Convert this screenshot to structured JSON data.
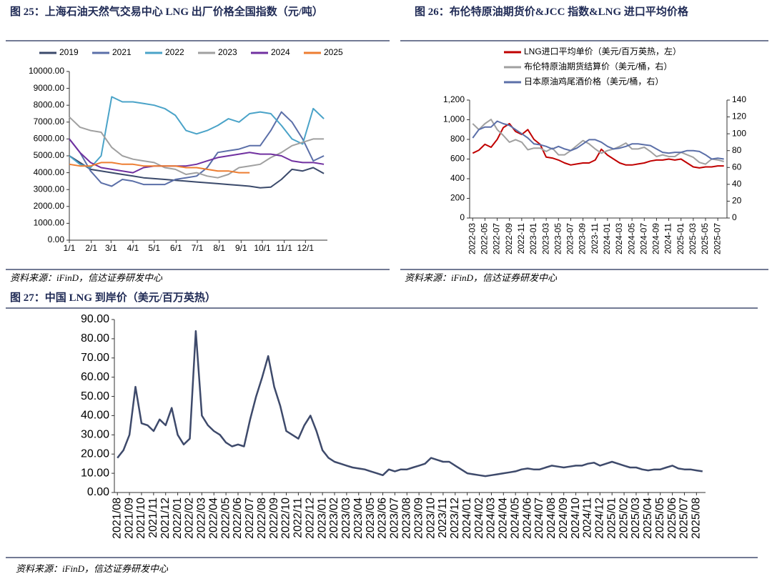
{
  "chart_data": [
    {
      "type": "line",
      "title": "图 25：上海石油天然气交易中心 LNG 出厂价格全国指数（元/吨）",
      "source": "资料来源：iFinD，信达证券研发中心",
      "x": [
        1,
        16,
        31,
        46,
        61,
        76,
        91,
        106,
        121,
        136,
        151,
        166,
        181,
        196,
        211,
        226,
        241,
        256,
        271,
        286,
        301,
        316,
        331,
        346,
        361
      ],
      "xlim": [
        1,
        366
      ],
      "xticks": [
        {
          "value": 1,
          "label": "1/1"
        },
        {
          "value": 32,
          "label": "2/1"
        },
        {
          "value": 60,
          "label": "3/1"
        },
        {
          "value": 91,
          "label": "4/1"
        },
        {
          "value": 121,
          "label": "5/1"
        },
        {
          "value": 152,
          "label": "6/1"
        },
        {
          "value": 182,
          "label": "7/1"
        },
        {
          "value": 213,
          "label": "8/1"
        },
        {
          "value": 244,
          "label": "9/1"
        },
        {
          "value": 274,
          "label": "10/1"
        },
        {
          "value": 305,
          "label": "11/1"
        },
        {
          "value": 335,
          "label": "12/1"
        }
      ],
      "ylim": [
        0,
        10000
      ],
      "yticks": [
        {
          "value": 0,
          "label": "0.00"
        },
        {
          "value": 1000,
          "label": "1000.00"
        },
        {
          "value": 2000,
          "label": "2000.00"
        },
        {
          "value": 3000,
          "label": "3000.00"
        },
        {
          "value": 4000,
          "label": "4000.00"
        },
        {
          "value": 5000,
          "label": "5000.00"
        },
        {
          "value": 6000,
          "label": "6000.00"
        },
        {
          "value": 7000,
          "label": "7000.00"
        },
        {
          "value": 8000,
          "label": "8000.00"
        },
        {
          "value": 9000,
          "label": "9000.00"
        },
        {
          "value": 10000,
          "label": "10000.00"
        }
      ],
      "legend": "top",
      "series": [
        {
          "name": "2019",
          "color": "#3b4a6b",
          "values": [
            5000,
            4600,
            4200,
            4100,
            4000,
            3900,
            3800,
            3700,
            3650,
            3600,
            3550,
            3500,
            3450,
            3400,
            3350,
            3300,
            3250,
            3200,
            3100,
            3150,
            3600,
            4200,
            4100,
            4300,
            3950
          ]
        },
        {
          "name": "2021",
          "color": "#5b6fa8",
          "values": [
            6000,
            5200,
            4100,
            3400,
            3200,
            3600,
            3500,
            3300,
            3300,
            3300,
            3600,
            3700,
            3800,
            4300,
            5200,
            5300,
            5400,
            5600,
            5600,
            6500,
            7600,
            7000,
            6000,
            4700,
            5000
          ]
        },
        {
          "name": "2022",
          "color": "#4aa3c8",
          "values": [
            5000,
            4500,
            4300,
            5000,
            8500,
            8200,
            8200,
            8100,
            8000,
            7800,
            7400,
            6500,
            6300,
            6500,
            6800,
            7200,
            7000,
            7500,
            7600,
            7500,
            6800,
            6000,
            5700,
            7800,
            7200
          ]
        },
        {
          "name": "2023",
          "color": "#a0a0a0",
          "values": [
            7300,
            6700,
            6500,
            6400,
            5500,
            5000,
            4800,
            4700,
            4600,
            4300,
            4200,
            3900,
            4000,
            3800,
            3700,
            3900,
            4300,
            4400,
            4500,
            4900,
            5200,
            5600,
            5800,
            6000,
            6000
          ]
        },
        {
          "name": "2024",
          "color": "#7030a0",
          "values": [
            6000,
            5200,
            4600,
            4300,
            4200,
            4100,
            4000,
            4300,
            4400,
            4400,
            4400,
            4400,
            4500,
            4700,
            4900,
            5000,
            5100,
            5200,
            5100,
            5100,
            5000,
            4700,
            4600,
            4600,
            4500
          ]
        },
        {
          "name": "2025",
          "color": "#ed7d31",
          "values": [
            4500,
            4400,
            4400,
            4600,
            4600,
            4500,
            4500,
            4400,
            4400,
            4400,
            4400,
            4300,
            4300,
            4200,
            4100,
            4100,
            4000,
            4000,
            null,
            null,
            null,
            null,
            null,
            null,
            null
          ]
        }
      ]
    },
    {
      "type": "line",
      "title": "图 26：布伦特原油期货价&JCC 指数&LNG 进口平均价格",
      "source": "资料来源：iFinD，信达证券研发中心",
      "categories": [
        "2022-03",
        null,
        "2022-05",
        null,
        "2022-07",
        null,
        "2022-09",
        null,
        "2022-11",
        null,
        "2023-01",
        null,
        "2023-03",
        null,
        "2023-05",
        null,
        "2023-07",
        null,
        "2023-09",
        null,
        "2023-11",
        null,
        "2024-01",
        null,
        "2024-03",
        null,
        "2024-05",
        null,
        "2024-07",
        null,
        "2024-09",
        null,
        "2024-11",
        null,
        "2025-01",
        null,
        "2025-03",
        null,
        "2025-05",
        null,
        "2025-07",
        null
      ],
      "ylim": [
        0,
        1200
      ],
      "yticks": [
        0,
        200,
        400,
        600,
        800,
        {
          "value": 1000,
          "label": "1,000"
        },
        {
          "value": 1200,
          "label": "1,200"
        }
      ],
      "y2lim": [
        0,
        140
      ],
      "y2ticks": [
        0,
        20,
        40,
        60,
        80,
        100,
        120,
        140
      ],
      "legend": "top",
      "series": [
        {
          "name": "LNG进口平均单价（美元/百万英热，左）",
          "color": "#c00000",
          "values": [
            660,
            690,
            750,
            720,
            800,
            920,
            960,
            880,
            850,
            900,
            800,
            750,
            620,
            610,
            590,
            560,
            540,
            550,
            560,
            560,
            590,
            700,
            640,
            600,
            560,
            540,
            540,
            550,
            560,
            580,
            590,
            590,
            600,
            590,
            600,
            560,
            520,
            510,
            520,
            520,
            530,
            530
          ]
        },
        {
          "name": "布伦特原油期货结算价（美元/桶，右）",
          "color": "#a0a0a0",
          "axis": "y2",
          "values": [
            112,
            105,
            112,
            117,
            105,
            98,
            90,
            93,
            90,
            81,
            83,
            83,
            79,
            83,
            75,
            75,
            80,
            86,
            92,
            88,
            82,
            77,
            80,
            82,
            85,
            89,
            82,
            82,
            84,
            79,
            73,
            75,
            73,
            73,
            78,
            75,
            72,
            66,
            64,
            70,
            69,
            67
          ]
        },
        {
          "name": "日本原油鸡尾酒价格（美元/桶，右）",
          "color": "#5b6fa8",
          "axis": "y2",
          "values": [
            95,
            105,
            108,
            108,
            115,
            112,
            110,
            105,
            100,
            95,
            88,
            87,
            85,
            82,
            85,
            82,
            80,
            83,
            88,
            93,
            93,
            90,
            85,
            82,
            83,
            85,
            88,
            88,
            87,
            86,
            82,
            78,
            77,
            78,
            78,
            80,
            80,
            79,
            75,
            70,
            71,
            70
          ]
        }
      ]
    },
    {
      "type": "line",
      "title": "图 27：中国 LNG 到岸价（美元/百万英热）",
      "source": "资料来源：iFinD，信达证券研发中心",
      "categories": [
        "2021/08",
        null,
        "2021/09",
        null,
        "2021/10",
        null,
        "2021/11",
        null,
        "2021/12",
        null,
        "2022/01",
        null,
        "2022/02",
        null,
        "2022/03",
        null,
        "2022/04",
        null,
        "2022/05",
        null,
        "2022/06",
        null,
        "2022/07",
        null,
        "2022/08",
        null,
        "2022/09",
        null,
        "2022/10",
        null,
        "2022/11",
        null,
        "2022/12",
        null,
        "2023/01",
        null,
        "2023/02",
        null,
        "2023/03",
        null,
        "2023/04",
        null,
        "2023/05",
        null,
        "2023/06",
        null,
        "2023/07",
        null,
        "2023/08",
        null,
        "2023/09",
        null,
        "2023/10",
        null,
        "2023/11",
        null,
        "2023/12",
        null,
        "2024/01",
        null,
        "2024/02",
        null,
        "2024/03",
        null,
        "2024/04",
        null,
        "2024/05",
        null,
        "2024/06",
        null,
        "2024/07",
        null,
        "2024/08",
        null,
        "2024/09",
        null,
        "2024/10",
        null,
        "2024/11",
        null,
        "2024/12",
        null,
        "2025/01",
        null,
        "2025/02",
        null,
        "2025/03",
        null,
        "2025/04",
        null,
        "2025/05",
        null,
        "2025/06",
        null,
        "2025/07",
        null,
        "2025/08",
        null
      ],
      "ylim": [
        0,
        90
      ],
      "yticks": [
        {
          "value": 0,
          "label": "0.00"
        },
        {
          "value": 10,
          "label": "10.00"
        },
        {
          "value": 20,
          "label": "20.00"
        },
        {
          "value": 30,
          "label": "30.00"
        },
        {
          "value": 40,
          "label": "40.00"
        },
        {
          "value": 50,
          "label": "50.00"
        },
        {
          "value": 60,
          "label": "60.00"
        },
        {
          "value": 70,
          "label": "70.00"
        },
        {
          "value": 80,
          "label": "80.00"
        },
        {
          "value": 90,
          "label": "90.00"
        }
      ],
      "series": [
        {
          "color": "#3e4a6b",
          "values": [
            18,
            22,
            30,
            55,
            36,
            35,
            32,
            38,
            35,
            44,
            30,
            25,
            28,
            84,
            40,
            35,
            32,
            30,
            26,
            24,
            25,
            24,
            38,
            50,
            60,
            71,
            55,
            45,
            32,
            30,
            28,
            35,
            40,
            32,
            22,
            18,
            16,
            15,
            14,
            13,
            12.5,
            12,
            11,
            10,
            9,
            12,
            11,
            12,
            12,
            13,
            14,
            15,
            18,
            17,
            16,
            16,
            14,
            12,
            10,
            9.5,
            9,
            8.5,
            9,
            9.5,
            10,
            10.5,
            11,
            12,
            12.5,
            12,
            12,
            13,
            14,
            13.5,
            13,
            13.5,
            14,
            14,
            15,
            15.5,
            14,
            15,
            16,
            15,
            14,
            13,
            13,
            12,
            11.5,
            12,
            12,
            13,
            14,
            12.5,
            12,
            12,
            11.5,
            11
          ]
        }
      ]
    }
  ]
}
